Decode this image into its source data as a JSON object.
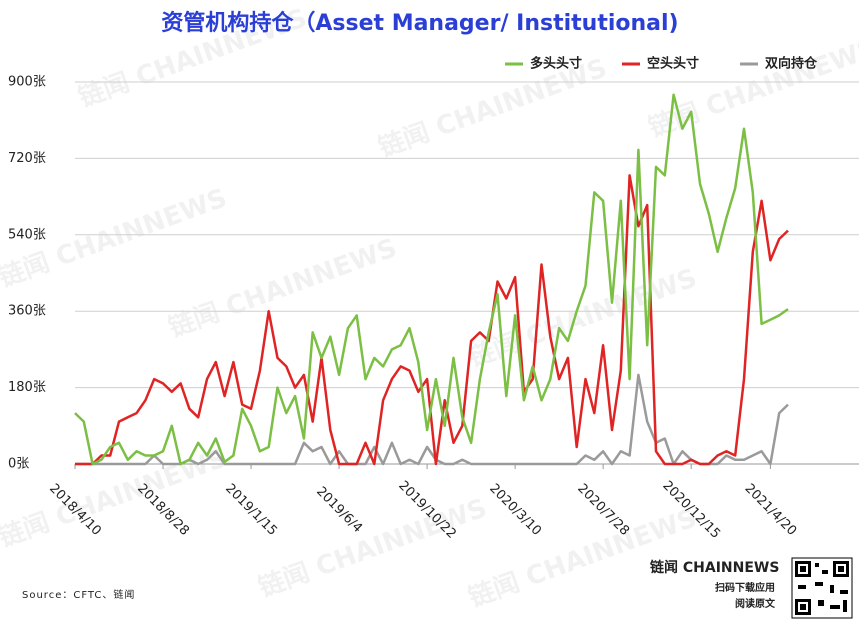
{
  "chart_data": {
    "type": "line",
    "title": "资管机构持仓（Asset Manager/ Institutional)",
    "source": "Source：CFTC、链闻",
    "brand": "链闻 CHAINNEWS",
    "brand_lines": [
      "扫码下载应用",
      "阅读原文"
    ],
    "categories": [
      "2018/4/10",
      null,
      null,
      null,
      null,
      null,
      null,
      null,
      null,
      null,
      "2018/8/28",
      null,
      null,
      null,
      null,
      null,
      null,
      null,
      null,
      null,
      "2019/1/15",
      null,
      null,
      null,
      null,
      null,
      null,
      null,
      null,
      null,
      "2019/6/4",
      null,
      null,
      null,
      null,
      null,
      null,
      null,
      null,
      null,
      "2019/10/22",
      null,
      null,
      null,
      null,
      null,
      null,
      null,
      null,
      null,
      "2020/3/10",
      null,
      null,
      null,
      null,
      null,
      null,
      null,
      null,
      null,
      "2020/7/28",
      null,
      null,
      null,
      null,
      null,
      null,
      null,
      null,
      null,
      "2020/12/15",
      null,
      null,
      null,
      null,
      null,
      null,
      null,
      null,
      "2021/4/20",
      null,
      null
    ],
    "series": [
      {
        "name": "多头头寸",
        "color": "#7bbf44",
        "values": [
          120,
          100,
          0,
          10,
          40,
          50,
          10,
          30,
          20,
          20,
          30,
          90,
          0,
          10,
          50,
          20,
          60,
          5,
          20,
          130,
          90,
          30,
          40,
          180,
          120,
          160,
          60,
          310,
          250,
          300,
          210,
          320,
          350,
          200,
          250,
          230,
          270,
          280,
          320,
          240,
          80,
          200,
          90,
          250,
          110,
          50,
          200,
          310,
          400,
          160,
          350,
          150,
          230,
          150,
          200,
          320,
          290,
          360,
          420,
          640,
          620,
          380,
          620,
          200,
          740,
          280,
          700,
          680,
          870,
          790,
          830,
          660,
          590,
          500,
          580,
          650,
          790,
          640,
          330,
          340,
          350,
          365
        ]
      },
      {
        "name": "空头头寸",
        "color": "#e02424",
        "values": [
          0,
          0,
          0,
          20,
          20,
          100,
          110,
          120,
          150,
          200,
          190,
          170,
          190,
          130,
          110,
          200,
          240,
          160,
          240,
          140,
          130,
          220,
          360,
          250,
          230,
          180,
          210,
          100,
          250,
          80,
          0,
          0,
          0,
          50,
          0,
          150,
          200,
          230,
          220,
          170,
          200,
          0,
          150,
          50,
          90,
          290,
          310,
          290,
          430,
          390,
          440,
          170,
          200,
          470,
          300,
          200,
          250,
          40,
          200,
          120,
          280,
          80,
          220,
          680,
          560,
          610,
          30,
          0,
          0,
          0,
          10,
          0,
          0,
          20,
          30,
          20,
          200,
          500,
          620,
          480,
          530,
          550
        ]
      },
      {
        "name": "双向持仓",
        "color": "#9a9a9a",
        "values": [
          0,
          0,
          0,
          0,
          0,
          0,
          0,
          0,
          0,
          20,
          0,
          0,
          0,
          10,
          0,
          10,
          30,
          0,
          0,
          0,
          0,
          0,
          0,
          0,
          0,
          0,
          50,
          30,
          40,
          0,
          30,
          0,
          0,
          0,
          40,
          0,
          50,
          0,
          10,
          0,
          40,
          10,
          0,
          0,
          10,
          0,
          0,
          0,
          0,
          0,
          0,
          0,
          0,
          0,
          0,
          0,
          0,
          0,
          20,
          10,
          30,
          0,
          30,
          20,
          210,
          100,
          50,
          60,
          0,
          30,
          10,
          0,
          0,
          0,
          20,
          10,
          10,
          20,
          30,
          0,
          120,
          140
        ]
      }
    ],
    "ylim": [
      0,
      900
    ],
    "yticks": [
      {
        "value": 0,
        "label": "0张"
      },
      {
        "value": 180,
        "label": "180张"
      },
      {
        "value": 360,
        "label": "360张"
      },
      {
        "value": 540,
        "label": "540张"
      },
      {
        "value": 720,
        "label": "720张"
      },
      {
        "value": 900,
        "label": "900张"
      }
    ],
    "grid": true
  }
}
